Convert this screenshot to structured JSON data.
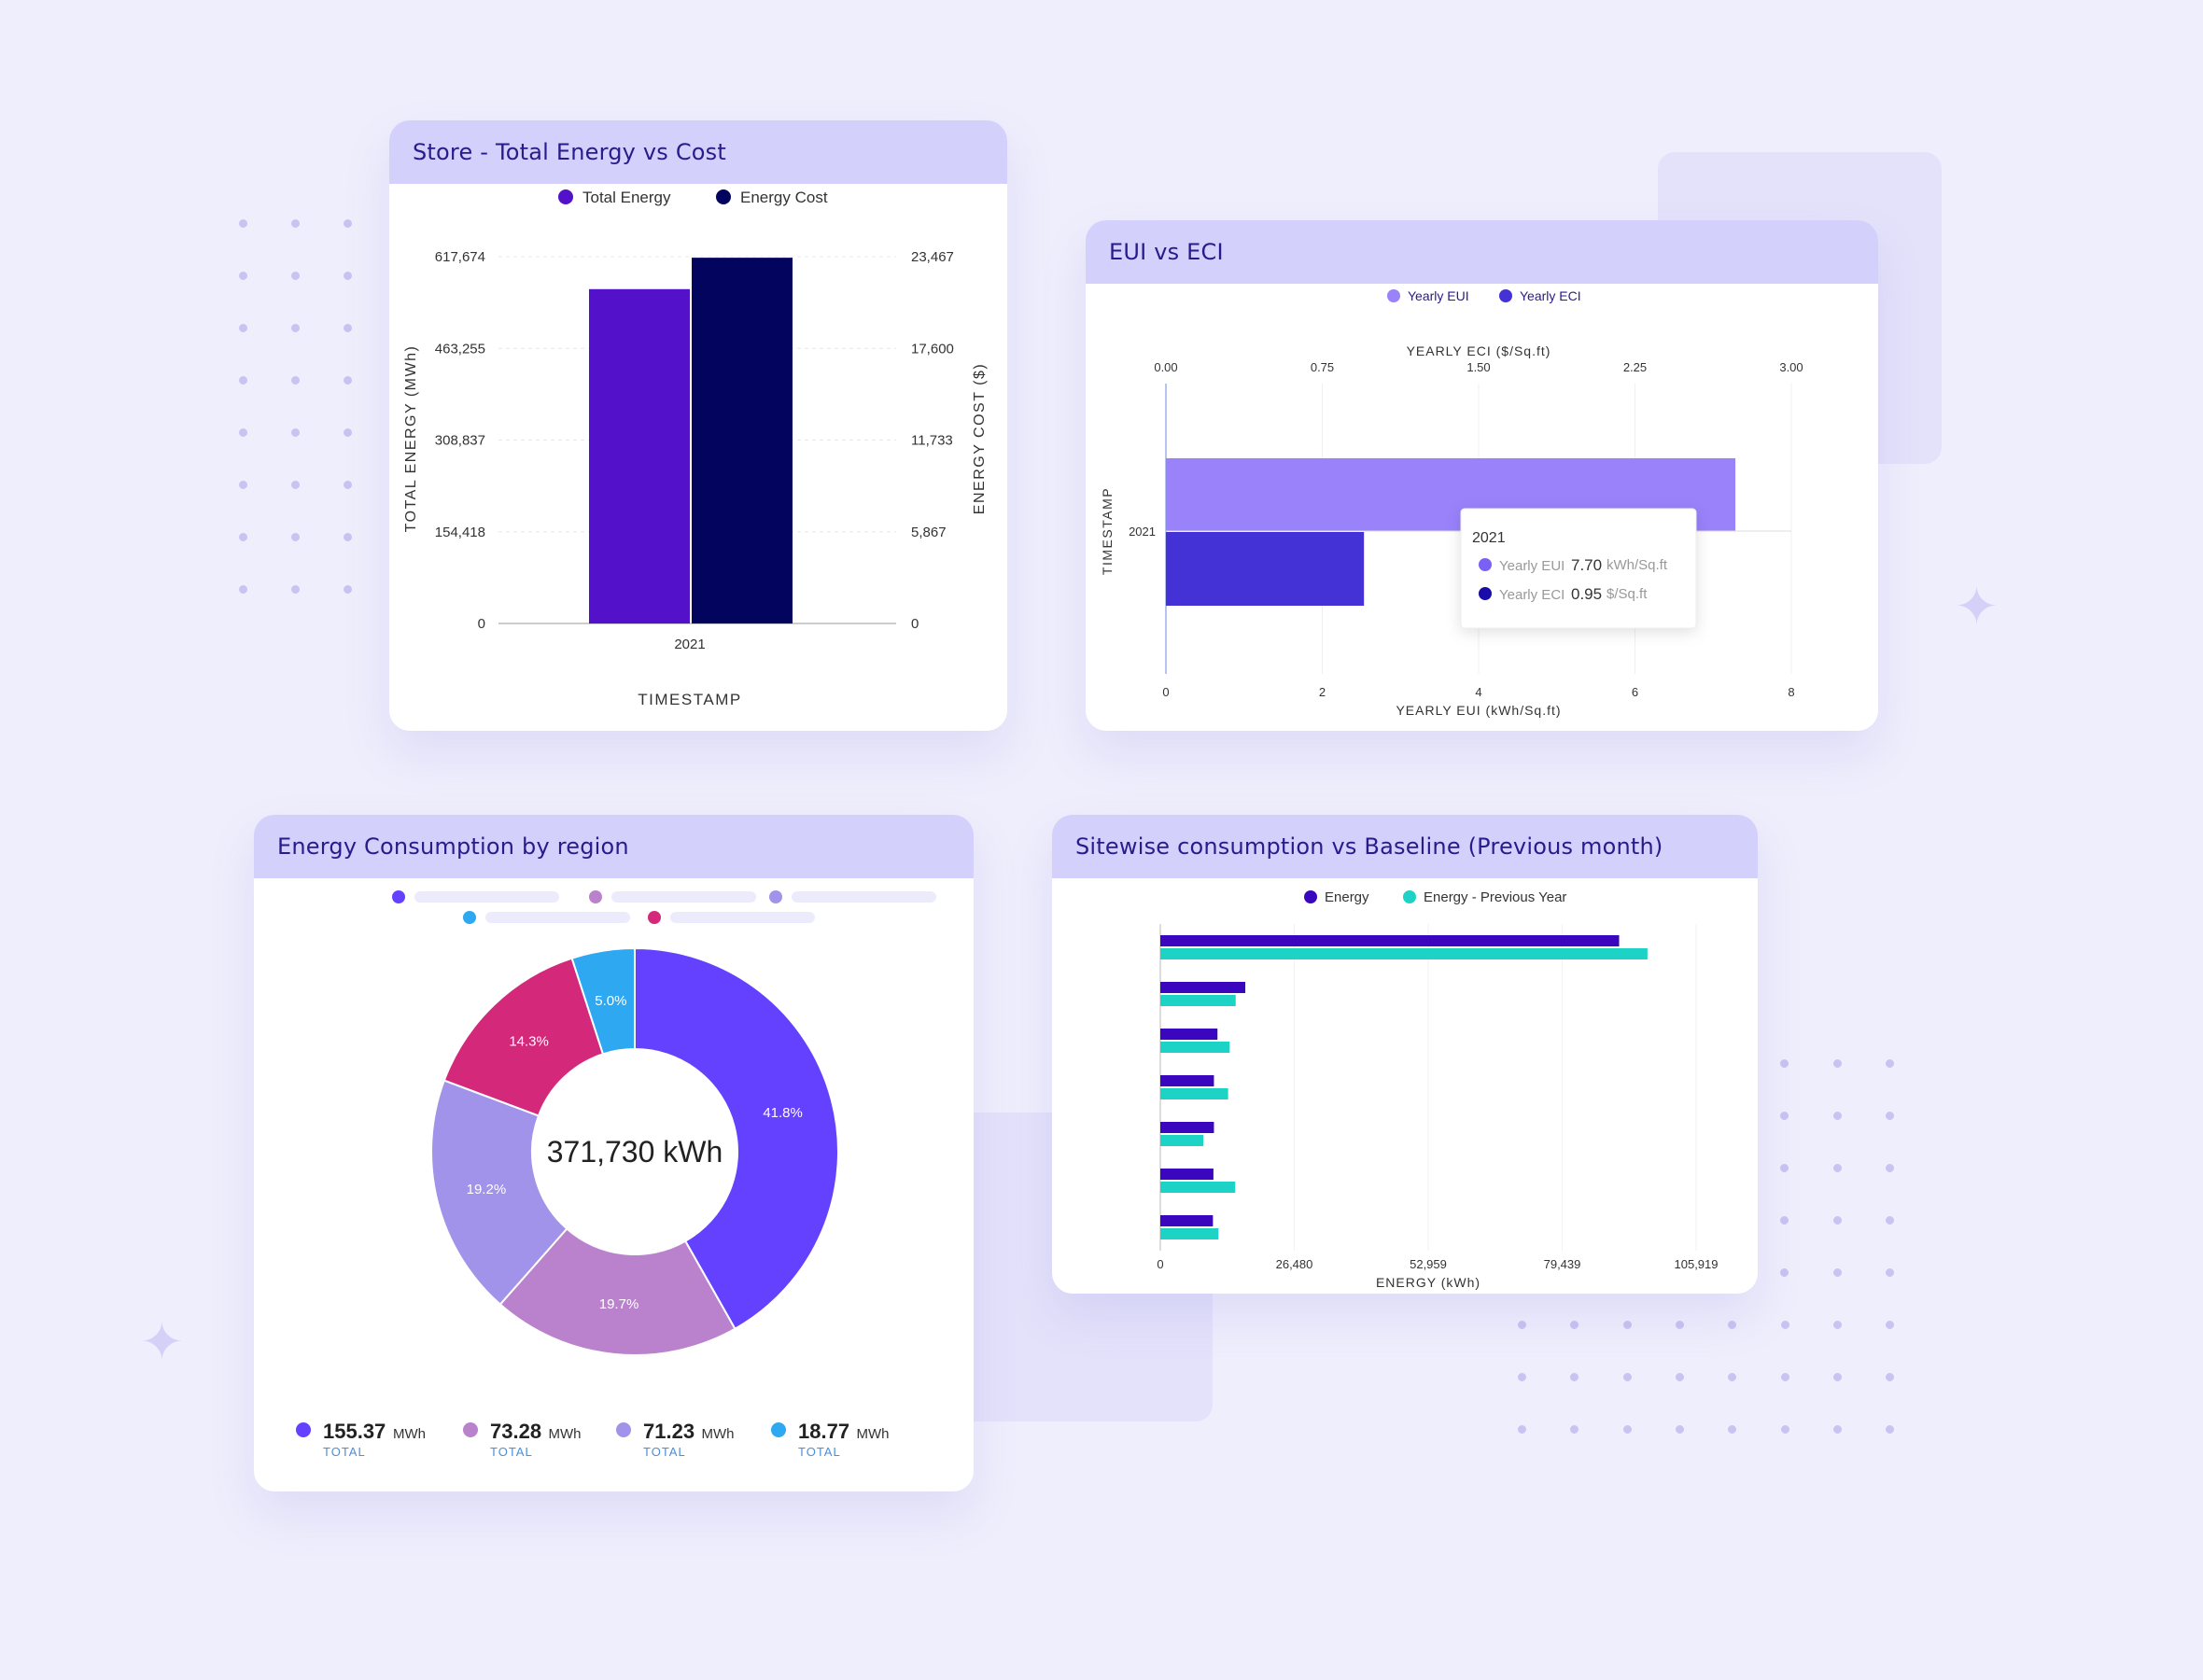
{
  "colors": {
    "accent": "#2A1A8C",
    "header": "#D3D1FB",
    "background": "#EFEEFC"
  },
  "chart_data": [
    {
      "type": "bar",
      "title": "Store - Total Energy vs Cost",
      "categories": [
        "2021"
      ],
      "xlabel": "TIMESTAMP",
      "ylabel": "TOTAL ENERGY (MWh)",
      "y2label": "ENERGY COST ($)",
      "ylim": [
        0,
        617674
      ],
      "y2lim": [
        0,
        23467
      ],
      "yticks": [
        "0",
        "154,418",
        "308,837",
        "463,255",
        "617,674"
      ],
      "y2ticks": [
        "0",
        "5,867",
        "11,733",
        "17,600",
        "23,467"
      ],
      "grid": true,
      "legend": "top",
      "series": [
        {
          "name": "Total Energy",
          "axis": "left",
          "values": [
            563000
          ],
          "color": "#5312C9"
        },
        {
          "name": "Energy Cost",
          "axis": "right",
          "values": [
            23400
          ],
          "color": "#03045E"
        }
      ]
    },
    {
      "type": "bar",
      "orientation": "horizontal",
      "title": "EUI vs ECI",
      "categories": [
        "2021"
      ],
      "ylabel": "TIMESTAMP",
      "xlabel": "YEARLY EUI (kWh/Sq.ft)",
      "x2label": "YEARLY ECI ($/Sq.ft)",
      "xlim": [
        0,
        8
      ],
      "x2lim": [
        0,
        3
      ],
      "xticks": [
        "0",
        "2",
        "4",
        "6",
        "8"
      ],
      "x2ticks": [
        "0.00",
        "0.75",
        "1.50",
        "2.25",
        "3.00"
      ],
      "legend": "top",
      "series": [
        {
          "name": "Yearly EUI",
          "axis": "bottom",
          "values": [
            7.7
          ],
          "unit": "kWh/Sq.ft",
          "color": "#9A82FB"
        },
        {
          "name": "Yearly ECI",
          "axis": "top",
          "values": [
            0.95
          ],
          "unit": "$/Sq.ft",
          "color": "#4432D6"
        }
      ],
      "tooltip": {
        "title": "2021",
        "rows": [
          {
            "name": "Yearly EUI",
            "value": "7.70",
            "unit": "kWh/Sq.ft",
            "color": "#7A60F5"
          },
          {
            "name": "Yearly ECI",
            "value": "0.95",
            "unit": "$/Sq.ft",
            "color": "#1A0CA8"
          }
        ]
      }
    },
    {
      "type": "pie",
      "donut": true,
      "title": "Energy Consumption by region",
      "center_label": "371,730 kWh",
      "slices": [
        {
          "value": 41.8,
          "label": "41.8%",
          "color": "#6441FF"
        },
        {
          "value": 19.7,
          "label": "19.7%",
          "color": "#BA82CC"
        },
        {
          "value": 19.2,
          "label": "19.2%",
          "color": "#A193E9"
        },
        {
          "value": 14.3,
          "label": "14.3%",
          "color": "#D4287A"
        },
        {
          "value": 5.0,
          "label": "5.0%",
          "color": "#2EA8F0"
        }
      ],
      "legend_dots": [
        "#6441FF",
        "#BA82CC",
        "#A193E9",
        "#2EA8F0",
        "#D4287A"
      ],
      "totals": [
        {
          "value": "155.37",
          "unit": "MWh",
          "label": "TOTAL",
          "color": "#6441FF"
        },
        {
          "value": "73.28",
          "unit": "MWh",
          "label": "TOTAL",
          "color": "#BA82CC"
        },
        {
          "value": "71.23",
          "unit": "MWh",
          "label": "TOTAL",
          "color": "#A193E9"
        },
        {
          "value": "18.77",
          "unit": "MWh",
          "label": "TOTAL",
          "color": "#2EA8F0"
        }
      ]
    },
    {
      "type": "bar",
      "orientation": "horizontal",
      "title": "Sitewise consumption vs Baseline (Previous month)",
      "xlabel": "ENERGY (kWh)",
      "xlim": [
        0,
        105919
      ],
      "xticks": [
        "0",
        "26,480",
        "52,959",
        "79,439",
        "105,919"
      ],
      "legend": "top",
      "grid": true,
      "series": [
        {
          "name": "Energy",
          "color": "#3A06BE",
          "values": [
            90700,
            16800,
            11300,
            10600,
            10600,
            10500,
            10400
          ]
        },
        {
          "name": "Energy - Previous Year",
          "color": "#1CD3C6",
          "values": [
            96300,
            14900,
            13700,
            13400,
            8500,
            14800,
            11500
          ]
        }
      ]
    }
  ]
}
